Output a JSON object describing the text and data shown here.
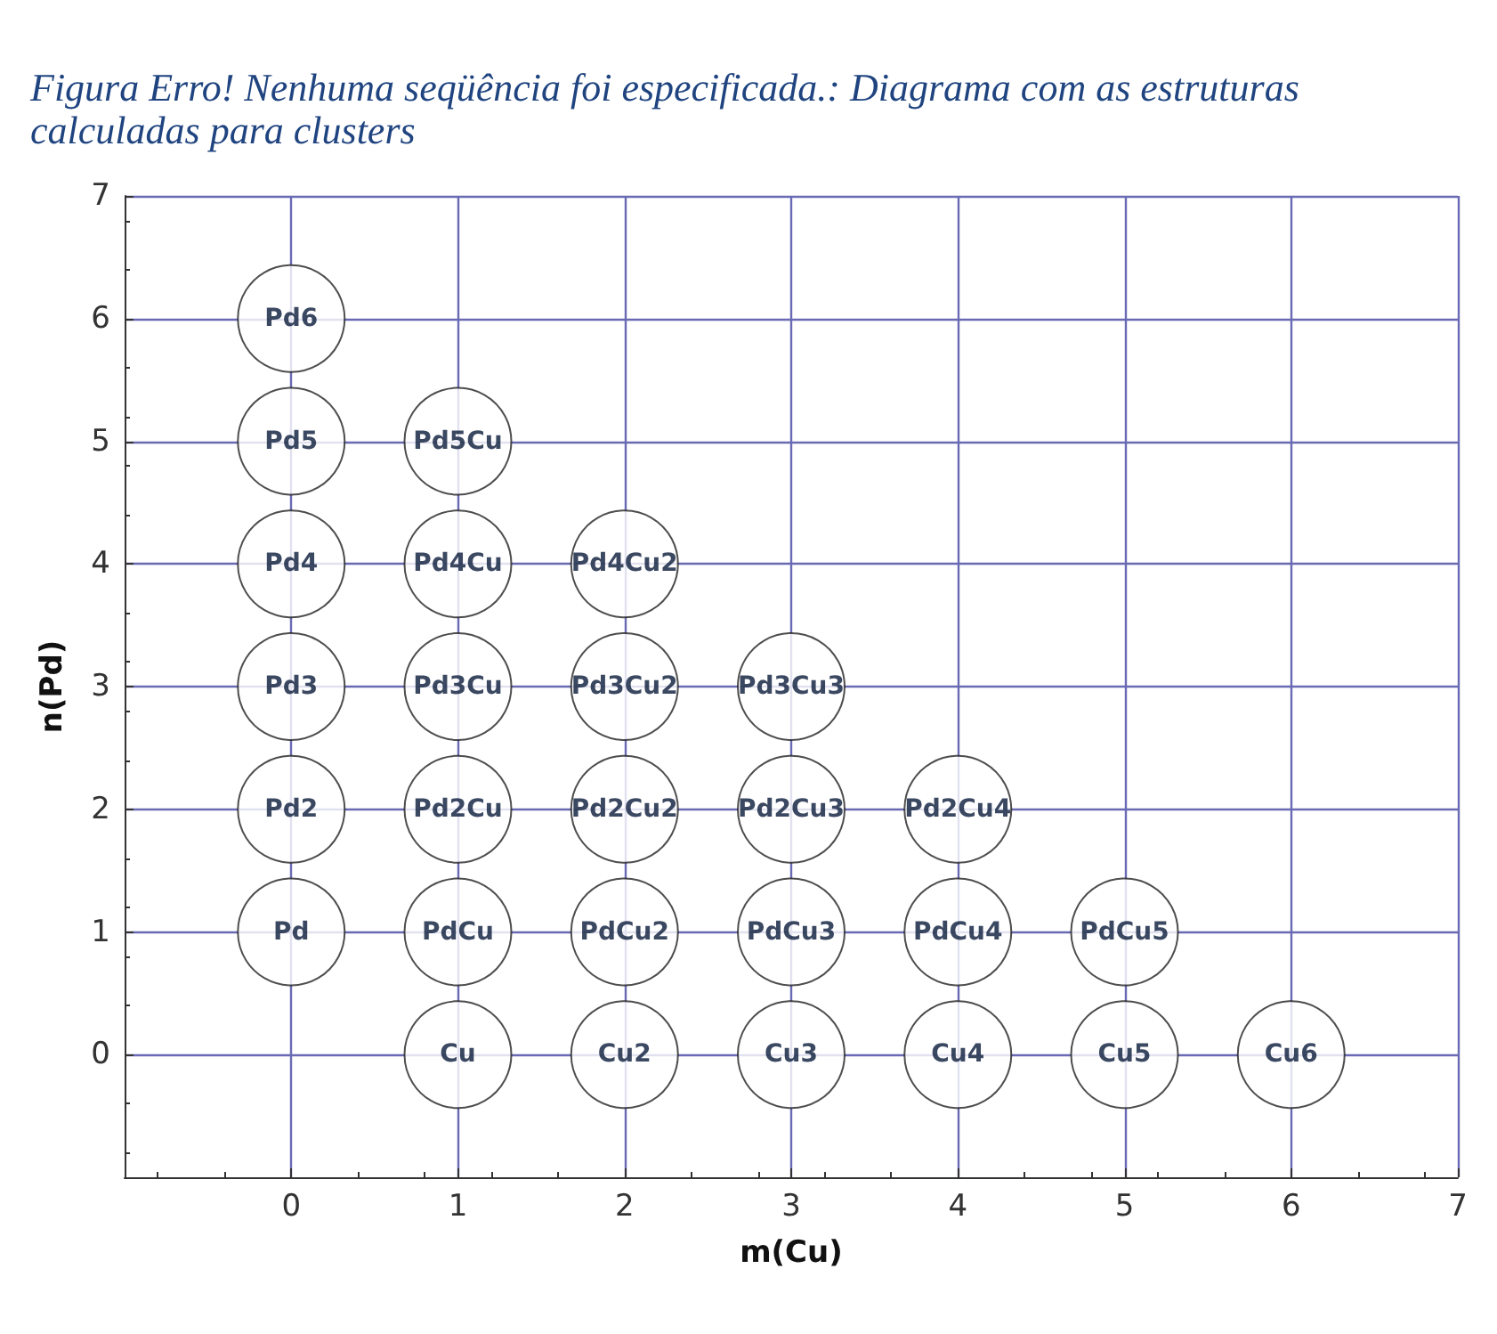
{
  "chart_data": {
    "type": "scatter",
    "title": "Figura Erro! Nenhuma seqüência foi especificada.: Diagrama com as estruturas calculadas para clusters",
    "xlabel": "m(Cu)",
    "ylabel": "n(Pd)",
    "xlim": [
      -1,
      7
    ],
    "xticks": [
      0,
      1,
      2,
      3,
      4,
      5,
      6,
      7
    ],
    "ylim": [
      -1,
      7
    ],
    "yticks": [
      0,
      1,
      2,
      3,
      4,
      5,
      6,
      7
    ],
    "grid": true,
    "marker": "circle",
    "series": [
      {
        "color": "#ffffff",
        "x": [
          0,
          0,
          0,
          0,
          0,
          0,
          1,
          1,
          1,
          1,
          1,
          1,
          2,
          2,
          2,
          2,
          2,
          3,
          3,
          3,
          3,
          4,
          4,
          4,
          5,
          5,
          6
        ],
        "values": [
          1,
          2,
          3,
          4,
          5,
          6,
          0,
          1,
          2,
          3,
          4,
          5,
          0,
          1,
          2,
          3,
          4,
          0,
          1,
          2,
          3,
          0,
          1,
          2,
          0,
          1,
          0
        ],
        "value_labels": [
          "Pd",
          "Pd2",
          "Pd3",
          "Pd4",
          "Pd5",
          "Pd6",
          "Cu",
          "PdCu",
          "Pd2Cu",
          "Pd3Cu",
          "Pd4Cu",
          "Pd5Cu",
          "Cu2",
          "PdCu2",
          "Pd2Cu2",
          "Pd3Cu2",
          "Pd4Cu2",
          "Cu3",
          "PdCu3",
          "Pd2Cu3",
          "Pd3Cu3",
          "Cu4",
          "PdCu4",
          "Pd2Cu4",
          "Cu5",
          "PdCu5",
          "Cu6"
        ]
      }
    ]
  }
}
